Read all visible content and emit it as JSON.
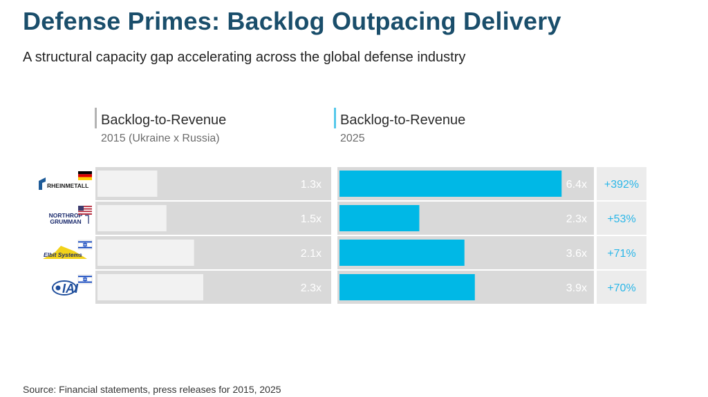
{
  "title": "Defense Primes: Backlog Outpacing Delivery",
  "subtitle": "A structural capacity gap accelerating across the global defense industry",
  "columns": {
    "left": {
      "title": "Backlog-to-Revenue",
      "subtitle": "2015 (Ukraine x Russia)"
    },
    "right": {
      "title": "Backlog-to-Revenue",
      "subtitle": "2025"
    }
  },
  "source": "Source: Financial statements, press releases for 2015, 2025",
  "colors": {
    "title": "#1a4e6b",
    "track": "#d9d9d9",
    "bar_2015": "#f2f2f2",
    "bar_2025": "#00b8e6",
    "change_text": "#29b6e8",
    "value_text": "#ffffff"
  },
  "chart_data": {
    "type": "bar",
    "orientation": "horizontal",
    "categories": [
      "Rheinmetall",
      "Northrop Grumman",
      "Elbit Systems",
      "IAI"
    ],
    "countries": [
      "Germany",
      "USA",
      "Israel",
      "Israel"
    ],
    "logo_texts": [
      "RHEINMETALL",
      "NORTHROP GRUMMAN",
      "Elbit Systems",
      "IAI"
    ],
    "series": [
      {
        "name": "2015",
        "values": [
          1.3,
          1.5,
          2.1,
          2.3
        ],
        "labels": [
          "1.3x",
          "1.5x",
          "2.1x",
          "2.3x"
        ]
      },
      {
        "name": "2025",
        "values": [
          6.4,
          2.3,
          3.6,
          3.9
        ],
        "labels": [
          "6.4x",
          "2.3x",
          "3.6x",
          "3.9x"
        ]
      }
    ],
    "change_labels": [
      "+392%",
      "+53%",
      "+71%",
      "+70%"
    ],
    "xlim": [
      0,
      7
    ]
  }
}
